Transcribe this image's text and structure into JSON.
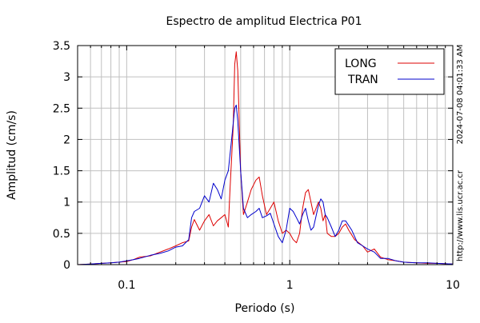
{
  "chart_data": {
    "type": "line",
    "title": "Espectro de amplitud Electrica P01",
    "xlabel": "Periodo (s)",
    "ylabel": "Amplitud (cm/s)",
    "x_scale": "log",
    "xlim": [
      0.05,
      10
    ],
    "ylim": [
      0,
      3.5
    ],
    "grid": true,
    "legend_position": "top-right",
    "x_ticks": [
      {
        "value": 0.1,
        "label": "0.1"
      },
      {
        "value": 1,
        "label": "1"
      },
      {
        "value": 10,
        "label": "10"
      }
    ],
    "y_ticks": [
      {
        "value": 0,
        "label": "0"
      },
      {
        "value": 0.5,
        "label": "0.5"
      },
      {
        "value": 1,
        "label": "1"
      },
      {
        "value": 1.5,
        "label": "1.5"
      },
      {
        "value": 2,
        "label": "2"
      },
      {
        "value": 2.5,
        "label": "2.5"
      },
      {
        "value": 3,
        "label": "3"
      },
      {
        "value": 3.5,
        "label": "3.5"
      }
    ],
    "side_texts": [
      "2024-07-08 04:01:33 AM",
      "http://www.lis.ucr.ac.cr"
    ],
    "series": [
      {
        "name": "LONG",
        "color": "#dd0000",
        "points": [
          [
            0.05,
            0.0
          ],
          [
            0.06,
            0.01
          ],
          [
            0.07,
            0.02
          ],
          [
            0.08,
            0.03
          ],
          [
            0.09,
            0.04
          ],
          [
            0.1,
            0.05
          ],
          [
            0.11,
            0.08
          ],
          [
            0.12,
            0.12
          ],
          [
            0.14,
            0.14
          ],
          [
            0.16,
            0.2
          ],
          [
            0.18,
            0.25
          ],
          [
            0.2,
            0.3
          ],
          [
            0.22,
            0.35
          ],
          [
            0.24,
            0.38
          ],
          [
            0.25,
            0.6
          ],
          [
            0.26,
            0.72
          ],
          [
            0.28,
            0.55
          ],
          [
            0.3,
            0.7
          ],
          [
            0.32,
            0.8
          ],
          [
            0.34,
            0.62
          ],
          [
            0.36,
            0.7
          ],
          [
            0.38,
            0.75
          ],
          [
            0.4,
            0.8
          ],
          [
            0.42,
            0.6
          ],
          [
            0.43,
            1.2
          ],
          [
            0.45,
            2.2
          ],
          [
            0.46,
            3.2
          ],
          [
            0.47,
            3.4
          ],
          [
            0.48,
            3.1
          ],
          [
            0.5,
            1.5
          ],
          [
            0.52,
            0.8
          ],
          [
            0.55,
            1.0
          ],
          [
            0.58,
            1.2
          ],
          [
            0.62,
            1.35
          ],
          [
            0.65,
            1.4
          ],
          [
            0.68,
            1.1
          ],
          [
            0.72,
            0.8
          ],
          [
            0.76,
            0.9
          ],
          [
            0.8,
            1.0
          ],
          [
            0.85,
            0.7
          ],
          [
            0.9,
            0.5
          ],
          [
            0.95,
            0.55
          ],
          [
            1.0,
            0.5
          ],
          [
            1.05,
            0.4
          ],
          [
            1.1,
            0.35
          ],
          [
            1.15,
            0.5
          ],
          [
            1.2,
            0.9
          ],
          [
            1.25,
            1.15
          ],
          [
            1.3,
            1.2
          ],
          [
            1.35,
            1.0
          ],
          [
            1.4,
            0.8
          ],
          [
            1.45,
            0.9
          ],
          [
            1.5,
            1.0
          ],
          [
            1.55,
            0.9
          ],
          [
            1.6,
            0.7
          ],
          [
            1.65,
            0.8
          ],
          [
            1.7,
            0.5
          ],
          [
            1.8,
            0.45
          ],
          [
            1.9,
            0.45
          ],
          [
            2.0,
            0.5
          ],
          [
            2.1,
            0.6
          ],
          [
            2.2,
            0.65
          ],
          [
            2.3,
            0.55
          ],
          [
            2.5,
            0.4
          ],
          [
            2.8,
            0.3
          ],
          [
            3.0,
            0.2
          ],
          [
            3.3,
            0.25
          ],
          [
            3.6,
            0.12
          ],
          [
            4.0,
            0.08
          ],
          [
            4.5,
            0.06
          ],
          [
            5.0,
            0.04
          ],
          [
            6.0,
            0.03
          ],
          [
            7.0,
            0.02
          ],
          [
            8.0,
            0.02
          ],
          [
            10.0,
            0.01
          ]
        ]
      },
      {
        "name": "TRAN",
        "color": "#0000cc",
        "points": [
          [
            0.05,
            0.0
          ],
          [
            0.06,
            0.01
          ],
          [
            0.07,
            0.02
          ],
          [
            0.08,
            0.03
          ],
          [
            0.09,
            0.04
          ],
          [
            0.1,
            0.06
          ],
          [
            0.11,
            0.08
          ],
          [
            0.12,
            0.1
          ],
          [
            0.14,
            0.15
          ],
          [
            0.16,
            0.18
          ],
          [
            0.18,
            0.22
          ],
          [
            0.2,
            0.28
          ],
          [
            0.22,
            0.3
          ],
          [
            0.24,
            0.4
          ],
          [
            0.25,
            0.75
          ],
          [
            0.26,
            0.85
          ],
          [
            0.28,
            0.9
          ],
          [
            0.3,
            1.1
          ],
          [
            0.32,
            1.0
          ],
          [
            0.34,
            1.3
          ],
          [
            0.36,
            1.2
          ],
          [
            0.38,
            1.05
          ],
          [
            0.4,
            1.35
          ],
          [
            0.42,
            1.5
          ],
          [
            0.44,
            2.0
          ],
          [
            0.46,
            2.5
          ],
          [
            0.47,
            2.55
          ],
          [
            0.48,
            2.3
          ],
          [
            0.5,
            1.5
          ],
          [
            0.52,
            0.9
          ],
          [
            0.55,
            0.75
          ],
          [
            0.58,
            0.8
          ],
          [
            0.62,
            0.85
          ],
          [
            0.65,
            0.9
          ],
          [
            0.68,
            0.75
          ],
          [
            0.72,
            0.78
          ],
          [
            0.76,
            0.82
          ],
          [
            0.8,
            0.65
          ],
          [
            0.85,
            0.45
          ],
          [
            0.9,
            0.35
          ],
          [
            0.95,
            0.55
          ],
          [
            1.0,
            0.9
          ],
          [
            1.05,
            0.85
          ],
          [
            1.1,
            0.75
          ],
          [
            1.15,
            0.65
          ],
          [
            1.2,
            0.8
          ],
          [
            1.25,
            0.9
          ],
          [
            1.3,
            0.7
          ],
          [
            1.35,
            0.55
          ],
          [
            1.4,
            0.6
          ],
          [
            1.5,
            0.95
          ],
          [
            1.55,
            1.05
          ],
          [
            1.6,
            1.0
          ],
          [
            1.65,
            0.8
          ],
          [
            1.7,
            0.75
          ],
          [
            1.8,
            0.6
          ],
          [
            1.9,
            0.45
          ],
          [
            2.0,
            0.55
          ],
          [
            2.1,
            0.7
          ],
          [
            2.2,
            0.7
          ],
          [
            2.4,
            0.55
          ],
          [
            2.6,
            0.35
          ],
          [
            2.8,
            0.3
          ],
          [
            3.0,
            0.25
          ],
          [
            3.3,
            0.2
          ],
          [
            3.6,
            0.1
          ],
          [
            4.0,
            0.1
          ],
          [
            4.5,
            0.06
          ],
          [
            5.0,
            0.04
          ],
          [
            6.0,
            0.03
          ],
          [
            7.0,
            0.03
          ],
          [
            8.0,
            0.02
          ],
          [
            10.0,
            0.01
          ]
        ]
      }
    ]
  }
}
